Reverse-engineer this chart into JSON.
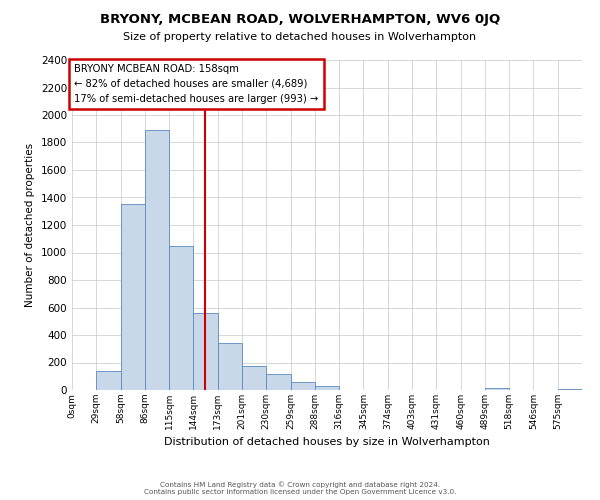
{
  "title": "BRYONY, MCBEAN ROAD, WOLVERHAMPTON, WV6 0JQ",
  "subtitle": "Size of property relative to detached houses in Wolverhampton",
  "xlabel": "Distribution of detached houses by size in Wolverhampton",
  "ylabel": "Number of detached properties",
  "bar_labels": [
    "0sqm",
    "29sqm",
    "58sqm",
    "86sqm",
    "115sqm",
    "144sqm",
    "173sqm",
    "201sqm",
    "230sqm",
    "259sqm",
    "288sqm",
    "316sqm",
    "345sqm",
    "374sqm",
    "403sqm",
    "431sqm",
    "460sqm",
    "489sqm",
    "518sqm",
    "546sqm",
    "575sqm"
  ],
  "bar_values": [
    0,
    135,
    1350,
    1890,
    1050,
    560,
    340,
    175,
    115,
    60,
    30,
    0,
    0,
    0,
    0,
    0,
    0,
    15,
    0,
    0,
    10
  ],
  "bar_color": "#c8d8e8",
  "bar_edge_color": "#5a8abf",
  "vline_color": "#cc0000",
  "annotation_title": "BRYONY MCBEAN ROAD: 158sqm",
  "annotation_line1": "← 82% of detached houses are smaller (4,689)",
  "annotation_line2": "17% of semi-detached houses are larger (993) →",
  "annotation_box_color": "#ffffff",
  "annotation_box_edge": "#cc0000",
  "ylim": [
    0,
    2400
  ],
  "yticks": [
    0,
    200,
    400,
    600,
    800,
    1000,
    1200,
    1400,
    1600,
    1800,
    2000,
    2200,
    2400
  ],
  "footer1": "Contains HM Land Registry data © Crown copyright and database right 2024.",
  "footer2": "Contains public sector information licensed under the Open Government Licence v3.0.",
  "bg_color": "#ffffff",
  "grid_color": "#c8c8c8"
}
